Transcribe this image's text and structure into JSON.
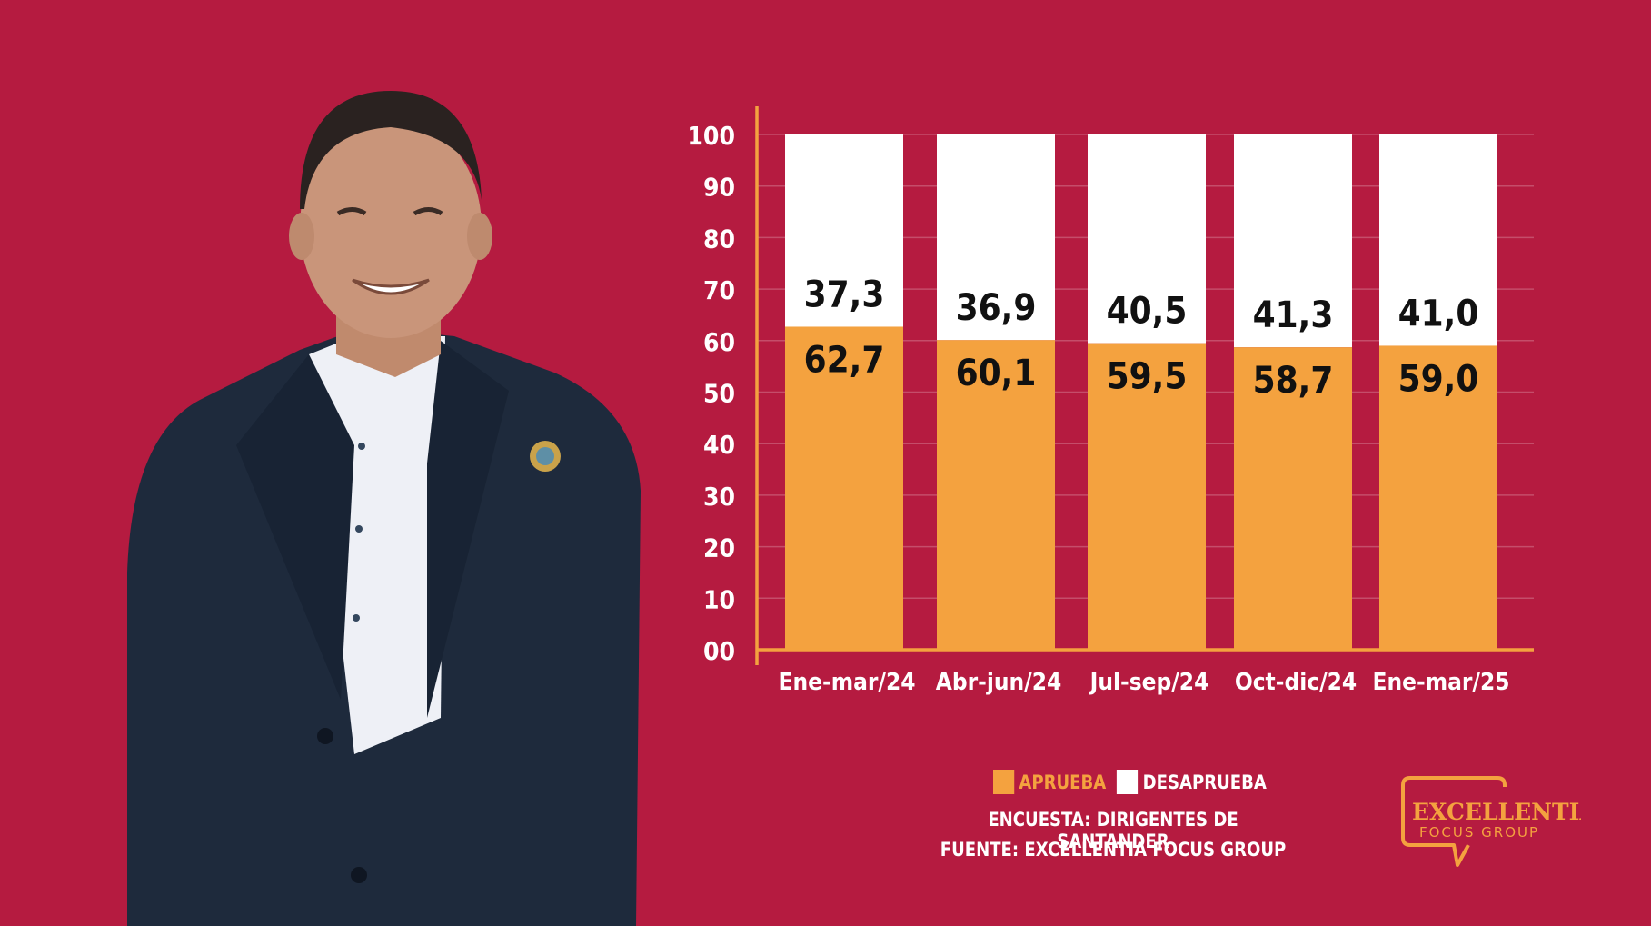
{
  "chart_data": {
    "type": "bar",
    "stacked": true,
    "categories": [
      "Ene-mar/24",
      "Abr-jun/24",
      "Jul-sep/24",
      "Oct-dic/24",
      "Ene-mar/25"
    ],
    "series": [
      {
        "name": "APRUEBA",
        "values": [
          62.7,
          60.1,
          59.5,
          58.7,
          59.0
        ],
        "labels": [
          "62,7",
          "60,1",
          "59,5",
          "58,7",
          "59,0"
        ],
        "color": "#F4A23F"
      },
      {
        "name": "DESAPRUEBA",
        "values": [
          37.3,
          36.9,
          40.5,
          41.3,
          41.0
        ],
        "labels": [
          "37,3",
          "36,9",
          "40,5",
          "41,3",
          "41,0"
        ],
        "color": "#FFFFFF"
      }
    ],
    "yticks": [
      "00",
      "10",
      "20",
      "30",
      "40",
      "50",
      "60",
      "70",
      "80",
      "90",
      "100"
    ],
    "ylim": [
      0,
      100
    ],
    "grid": true,
    "legend": "bottom"
  },
  "legend": {
    "approve": "APRUEBA",
    "disapprove": "DESAPRUEBA"
  },
  "survey_label": "ENCUESTA: DIRIGENTES DE SANTANDER",
  "source_label": "FUENTE: EXCELLENTIA FOCUS GROUP",
  "logo": {
    "line1": "EXCELLENTIA",
    "line2": "FOCUS GROUP"
  },
  "colors": {
    "background": "#B51B40",
    "approve": "#F4A23F",
    "disapprove": "#FFFFFF",
    "axis": "#F4A23F"
  }
}
